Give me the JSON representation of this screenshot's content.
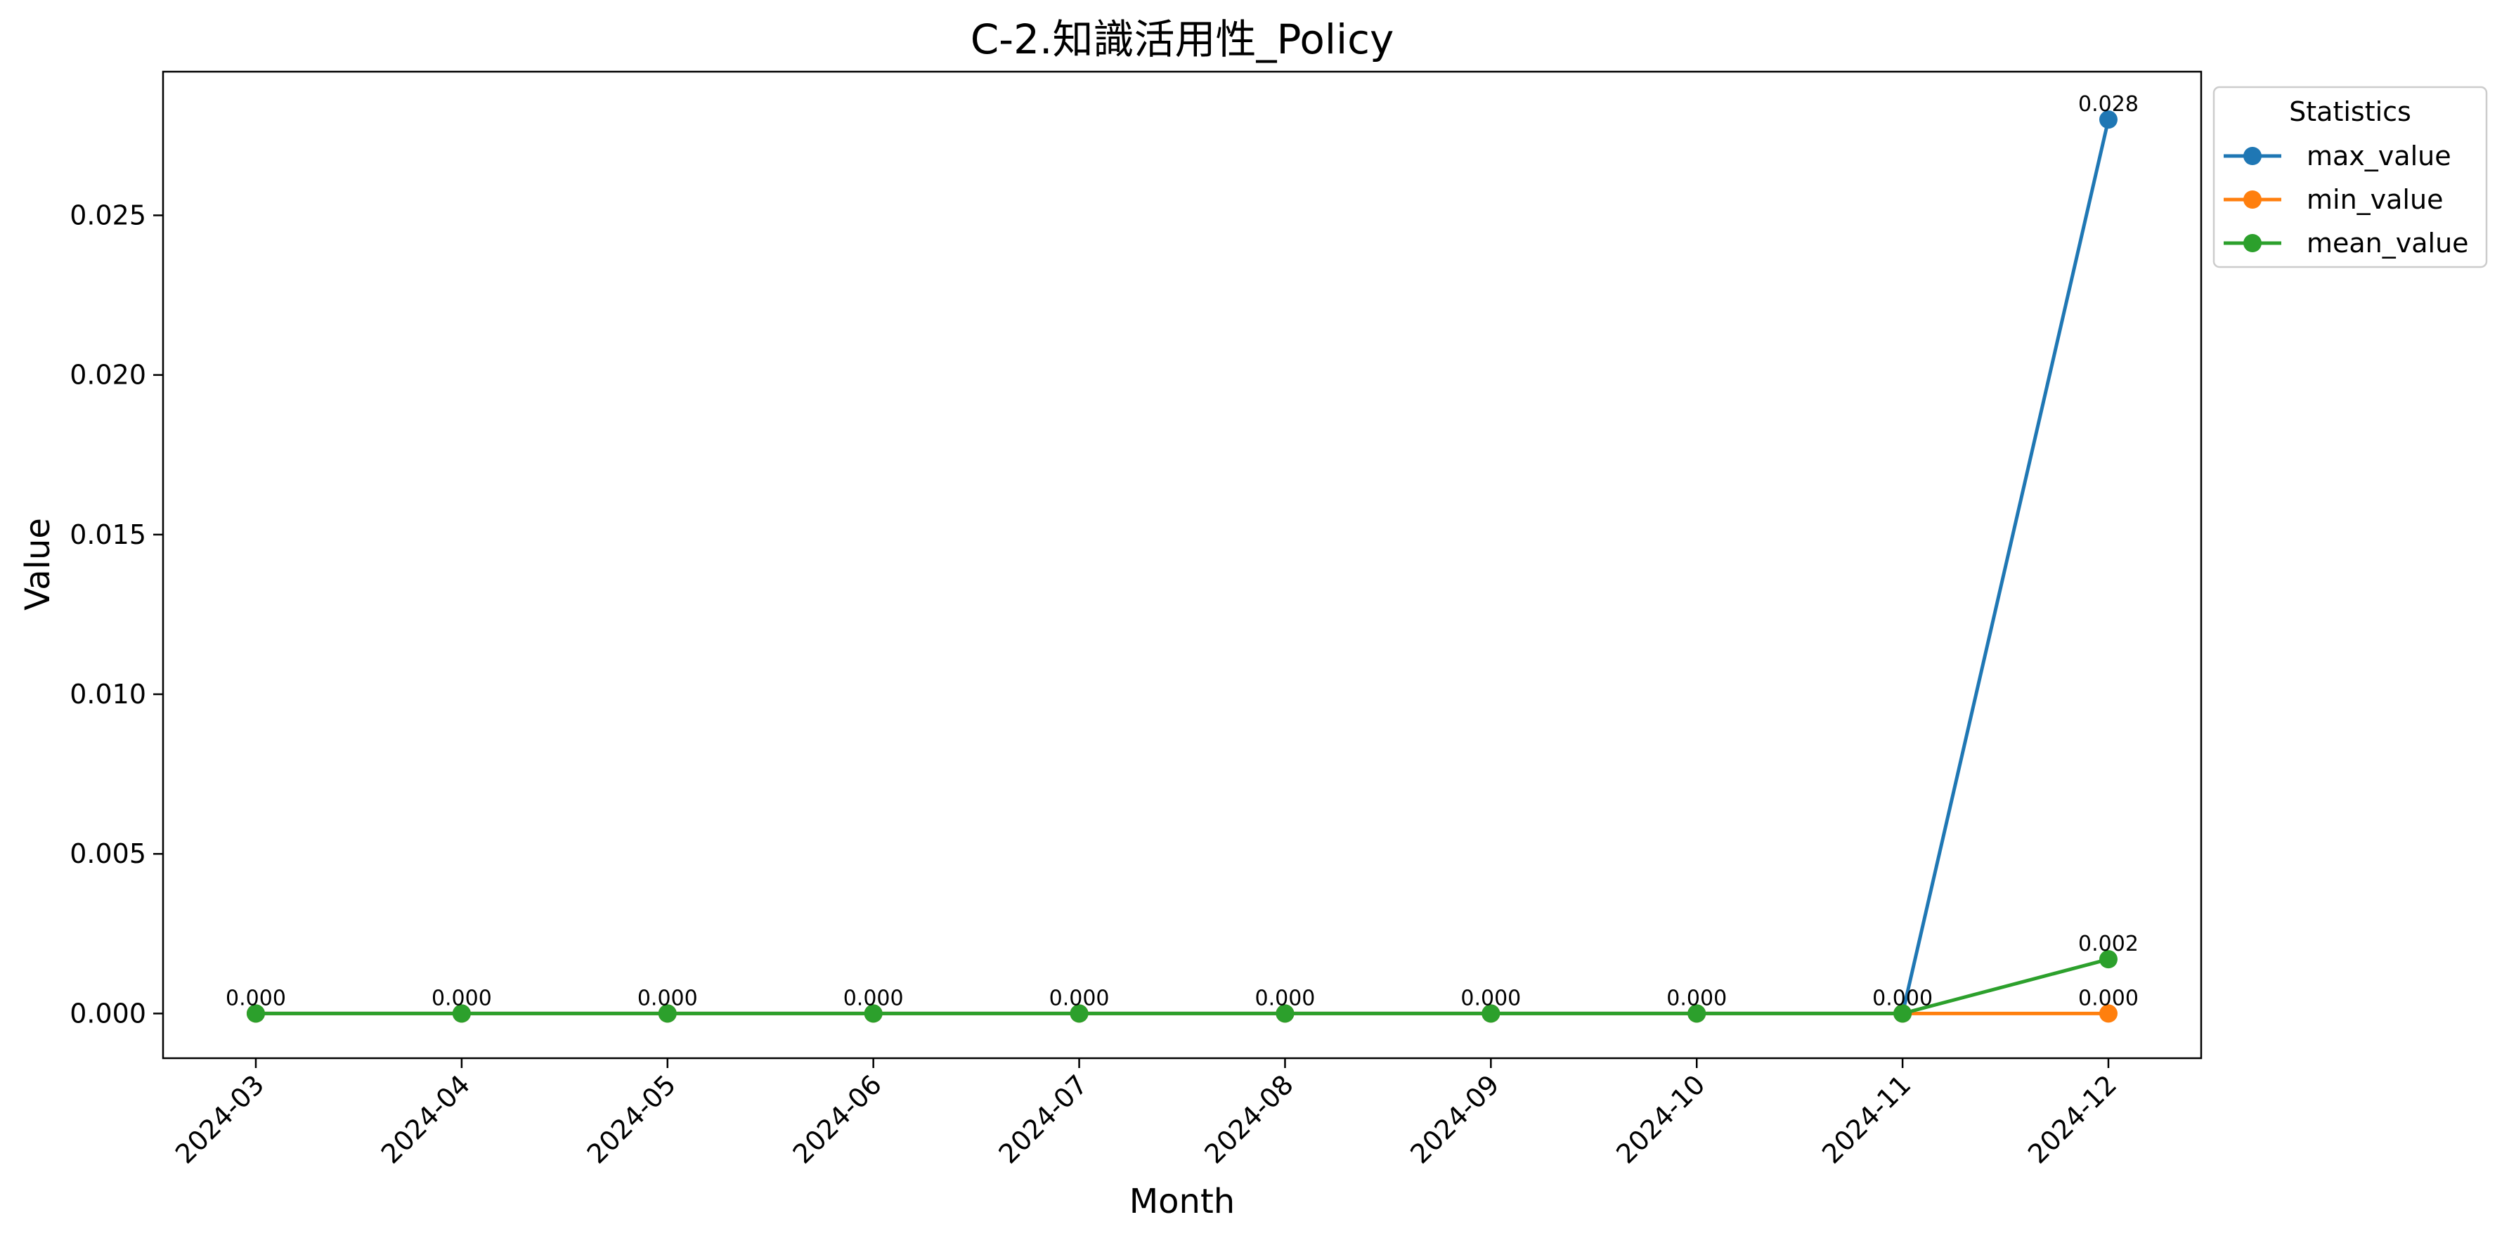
{
  "chart_data": {
    "type": "line",
    "title": "C-2.知識活用性_Policy",
    "xlabel": "Month",
    "ylabel": "Value",
    "categories": [
      "2024-03",
      "2024-04",
      "2024-05",
      "2024-06",
      "2024-07",
      "2024-08",
      "2024-09",
      "2024-10",
      "2024-11",
      "2024-12"
    ],
    "ylim": [
      -0.0014,
      0.0295
    ],
    "yticks": [
      "0.000",
      "0.005",
      "0.010",
      "0.015",
      "0.020",
      "0.025"
    ],
    "grid": false,
    "legend": {
      "title": "Statistics",
      "placement": "outside-top-right"
    },
    "series": [
      {
        "name": "max_value",
        "color": "#1f77b4",
        "values": [
          0,
          0,
          0,
          0,
          0,
          0,
          0,
          0,
          0,
          0.028
        ],
        "labels": [
          "",
          "",
          "",
          "",
          "",
          "",
          "",
          "",
          "",
          "0.028"
        ]
      },
      {
        "name": "min_value",
        "color": "#ff7f0e",
        "values": [
          0,
          0,
          0,
          0,
          0,
          0,
          0,
          0,
          0,
          0
        ],
        "labels": [
          "",
          "",
          "",
          "",
          "",
          "",
          "",
          "",
          "",
          "0.000"
        ]
      },
      {
        "name": "mean_value",
        "color": "#2ca02c",
        "values": [
          0,
          0,
          0,
          0,
          0,
          0,
          0,
          0,
          0,
          0.0017
        ],
        "labels": [
          "0.000",
          "0.000",
          "0.000",
          "0.000",
          "0.000",
          "0.000",
          "0.000",
          "0.000",
          "0.000",
          "0.002"
        ]
      }
    ]
  }
}
